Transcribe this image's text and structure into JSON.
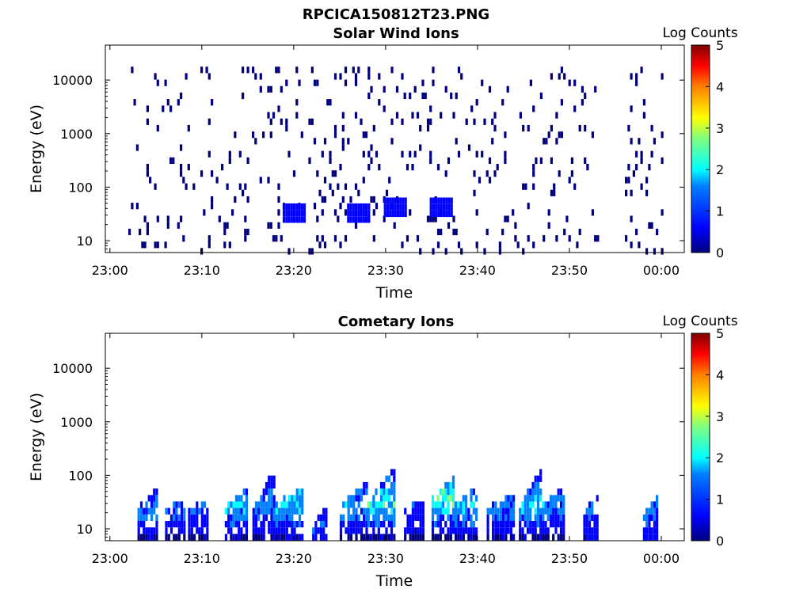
{
  "figure": {
    "title": "RPCICA150812T23.PNG"
  },
  "colors": {
    "colormap": [
      "#00007f",
      "#0000ff",
      "#007fff",
      "#00ffff",
      "#7fff7f",
      "#ffff00",
      "#ff7f00",
      "#ff0000",
      "#7f0000"
    ],
    "text": "#000000",
    "axes": "#000000",
    "background": "#ffffff"
  },
  "chart_data": [
    {
      "type": "heatmap",
      "title": "Solar Wind Ions",
      "xlabel": "Time",
      "ylabel": "Energy (eV)",
      "x_unit": "UT time (hh:mm)",
      "xlim": [
        "22:59:30",
        "00:02:30"
      ],
      "xticks": [
        "23:00",
        "23:10",
        "23:20",
        "23:30",
        "23:40",
        "23:50",
        "00:00"
      ],
      "y_scale": "log",
      "ylim": [
        6,
        45000
      ],
      "yticks": [
        10,
        100,
        1000,
        10000
      ],
      "ytick_labels": [
        "10",
        "100",
        "1000",
        "10000"
      ],
      "colorbar": {
        "label": "Log Counts",
        "range": [
          0,
          5
        ],
        "ticks": [
          "0",
          "1",
          "2",
          "3",
          "4",
          "5"
        ]
      },
      "data_gaps": [
        [
          "00:00",
          "00:00"
        ],
        [
          "23:53",
          "23:56"
        ]
      ],
      "dense_bands": [
        {
          "time": "23:31",
          "energy_eV": 45,
          "log_counts": 0.9
        },
        {
          "time": "23:36",
          "energy_eV": 45,
          "log_counts": 0.9
        },
        {
          "time": "23:20",
          "energy_eV": 35,
          "log_counts": 0.8
        },
        {
          "time": "23:27",
          "energy_eV": 35,
          "log_counts": 0.8
        }
      ],
      "pattern": "sparse single-count pixels from 23:02 to 23:53 and 23:56 to 00:00"
    },
    {
      "type": "heatmap",
      "title": "Cometary Ions",
      "xlabel": "Time",
      "ylabel": "Energy (eV)",
      "x_unit": "UT time (hh:mm)",
      "xlim": [
        "22:59:30",
        "00:02:30"
      ],
      "xticks": [
        "23:00",
        "23:10",
        "23:20",
        "23:30",
        "23:40",
        "23:50",
        "00:00"
      ],
      "y_scale": "log",
      "ylim": [
        6,
        45000
      ],
      "yticks": [
        10,
        100,
        1000,
        10000
      ],
      "ytick_labels": [
        "10",
        "100",
        "1000",
        "10000"
      ],
      "colorbar": {
        "label": "Log Counts",
        "range": [
          0,
          5
        ],
        "ticks": [
          "0",
          "1",
          "2",
          "3",
          "4",
          "5"
        ]
      },
      "bursts": [
        {
          "start": "23:03",
          "end": "23:05",
          "peak_energy_eV": 25,
          "max_energy_eV": 60,
          "peak_log_counts": 1.3
        },
        {
          "start": "23:06",
          "end": "23:08",
          "peak_energy_eV": 25,
          "max_energy_eV": 35,
          "peak_log_counts": 1.2
        },
        {
          "start": "23:08.5",
          "end": "23:10.5",
          "peak_energy_eV": 25,
          "max_energy_eV": 35,
          "peak_log_counts": 1.3
        },
        {
          "start": "23:12.5",
          "end": "23:15",
          "peak_energy_eV": 28,
          "max_energy_eV": 60,
          "peak_log_counts": 1.8
        },
        {
          "start": "23:15.5",
          "end": "23:18",
          "peak_energy_eV": 28,
          "max_energy_eV": 150,
          "peak_log_counts": 1.5
        },
        {
          "start": "23:18",
          "end": "23:21",
          "peak_energy_eV": 30,
          "max_energy_eV": 70,
          "peak_log_counts": 2.0
        },
        {
          "start": "23:22",
          "end": "23:23.5",
          "peak_energy_eV": 12,
          "max_energy_eV": 30,
          "peak_log_counts": 1.2
        },
        {
          "start": "23:25",
          "end": "23:28",
          "peak_energy_eV": 30,
          "max_energy_eV": 80,
          "peak_log_counts": 1.6
        },
        {
          "start": "23:28",
          "end": "23:31",
          "peak_energy_eV": 32,
          "max_energy_eV": 150,
          "peak_log_counts": 2.3
        },
        {
          "start": "23:32",
          "end": "23:34",
          "peak_energy_eV": 25,
          "max_energy_eV": 35,
          "peak_log_counts": 1.1
        },
        {
          "start": "23:35",
          "end": "23:37.5",
          "peak_energy_eV": 38,
          "max_energy_eV": 100,
          "peak_log_counts": 2.5
        },
        {
          "start": "23:37.5",
          "end": "23:40",
          "peak_energy_eV": 30,
          "max_energy_eV": 70,
          "peak_log_counts": 1.9
        },
        {
          "start": "23:41",
          "end": "23:44",
          "peak_energy_eV": 25,
          "max_energy_eV": 50,
          "peak_log_counts": 1.4
        },
        {
          "start": "23:44.5",
          "end": "23:47",
          "peak_energy_eV": 30,
          "max_energy_eV": 150,
          "peak_log_counts": 2.0
        },
        {
          "start": "23:47",
          "end": "23:49.5",
          "peak_energy_eV": 30,
          "max_energy_eV": 70,
          "peak_log_counts": 1.5
        },
        {
          "start": "23:51.5",
          "end": "23:53",
          "peak_energy_eV": 25,
          "max_energy_eV": 40,
          "peak_log_counts": 1.3
        },
        {
          "start": "23:58",
          "end": "23:59.5",
          "peak_energy_eV": 20,
          "max_energy_eV": 40,
          "peak_log_counts": 1.4
        }
      ]
    }
  ]
}
